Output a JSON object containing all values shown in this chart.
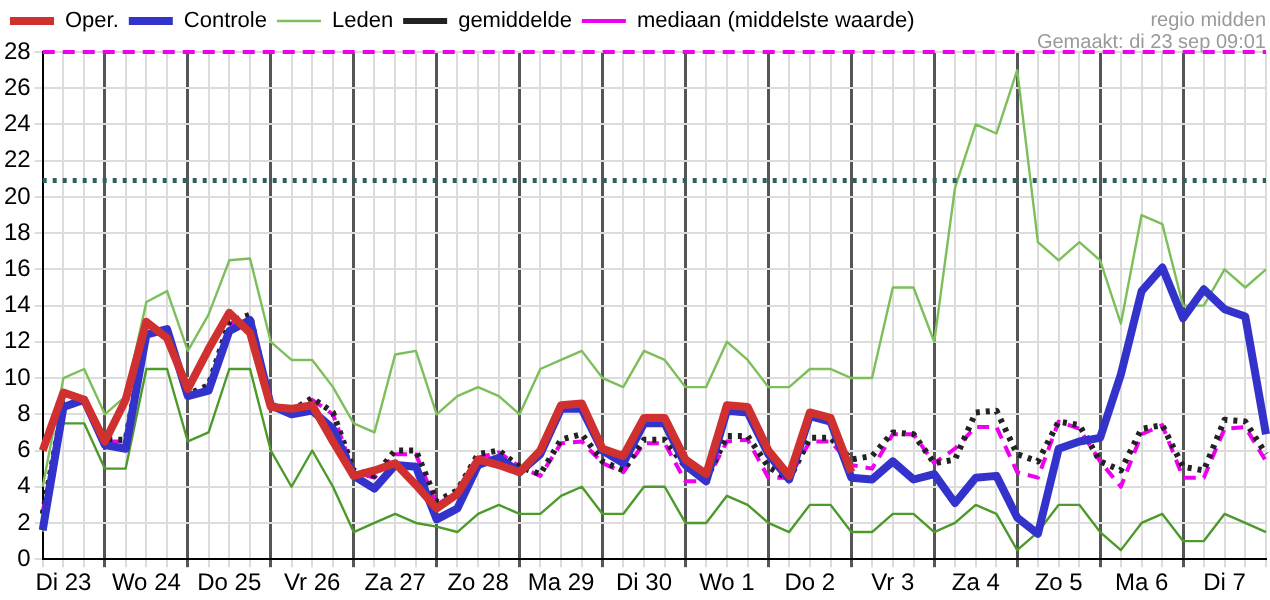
{
  "chart_data": {
    "type": "line",
    "categories": [
      null,
      "Di 23",
      null,
      null,
      null,
      "Wo 24",
      null,
      null,
      null,
      "Do 25",
      null,
      null,
      null,
      "Vr 26",
      null,
      null,
      null,
      "Za 27",
      null,
      null,
      null,
      "Zo 28",
      null,
      null,
      null,
      "Ma 29",
      null,
      null,
      null,
      "Di 30",
      null,
      null,
      null,
      "Wo 1",
      null,
      null,
      null,
      "Do 2",
      null,
      null,
      null,
      "Vr 3",
      null,
      null,
      null,
      "Za 4",
      null,
      null,
      null,
      "Zo 5",
      null,
      null,
      null,
      "Ma 6",
      null,
      null,
      null,
      "Di 7",
      null,
      null
    ],
    "series": [
      {
        "name": "Oper.",
        "color": "#d03030",
        "line_style": "solid",
        "values": [
          6,
          9.2,
          8.8,
          6.5,
          8.8,
          13.1,
          12.2,
          9.4,
          11.6,
          13.6,
          12.5,
          8.4,
          8.3,
          8.5,
          6.5,
          4.6,
          4.9,
          5.3,
          4.1,
          2.8,
          3.6,
          5.5,
          5.2,
          4.8,
          6.0,
          8.5,
          8.6,
          6.1,
          5.7,
          7.8,
          7.8,
          5.5,
          4.7,
          8.5,
          8.4,
          6.0,
          4.6,
          8.1,
          7.8,
          4.8,
          null,
          null,
          null,
          null,
          null,
          null,
          null,
          null,
          null,
          null,
          null,
          null,
          null,
          null,
          null,
          null,
          null,
          null,
          null,
          null
        ]
      },
      {
        "name": "Controle",
        "color": "#3333cc",
        "line_style": "solid",
        "values": [
          1.6,
          8.4,
          8.8,
          6.3,
          6.1,
          12.4,
          12.7,
          9.0,
          9.3,
          12.6,
          13.2,
          8.5,
          8.0,
          8.2,
          7.2,
          4.6,
          3.9,
          5.2,
          5.1,
          2.2,
          2.8,
          5.2,
          5.6,
          4.8,
          5.8,
          8.3,
          8.3,
          6.0,
          5.3,
          7.5,
          7.5,
          5.2,
          4.3,
          8.2,
          8.1,
          5.8,
          4.4,
          7.9,
          7.6,
          4.5,
          4.4,
          5.4,
          4.4,
          4.7,
          3.1,
          4.5,
          4.6,
          2.3,
          1.4,
          6.1,
          6.5,
          6.7,
          10.2,
          14.8,
          16.1,
          13.3,
          14.9,
          13.8,
          13.4,
          6.9
        ]
      },
      {
        "name": "Leden",
        "color": "#7cbf5a",
        "line_style": "solid",
        "values": [
          4,
          10,
          10.5,
          8,
          9,
          14.2,
          14.8,
          11.5,
          13.5,
          16.5,
          16.6,
          12,
          11,
          11,
          9.5,
          7.5,
          7,
          11.3,
          11.5,
          8,
          9,
          9.5,
          9,
          8,
          10.5,
          11,
          11.5,
          10,
          9.5,
          11.5,
          11,
          9.5,
          9.5,
          12,
          11,
          9.5,
          9.5,
          10.5,
          10.5,
          10,
          10,
          15,
          15,
          12,
          20.5,
          24,
          23.5,
          27,
          17.5,
          16.5,
          17.5,
          16.5,
          13,
          19,
          18.5,
          14,
          14,
          16,
          15,
          16
        ]
      },
      {
        "name": "gemiddelde",
        "color": "#222222",
        "line_style": "dotted",
        "values": [
          2.5,
          8.6,
          8.7,
          6.6,
          6.6,
          12.5,
          12.6,
          9.1,
          9.6,
          13.1,
          13.5,
          8.4,
          8.2,
          8.9,
          8.1,
          4.9,
          4.6,
          6.0,
          6.0,
          3.2,
          3.8,
          5.8,
          6.0,
          5.1,
          4.7,
          6.6,
          6.9,
          5.4,
          4.9,
          6.6,
          6.6,
          5.1,
          4.4,
          6.8,
          6.8,
          5.1,
          4.4,
          6.7,
          6.7,
          5.5,
          5.7,
          7.0,
          6.9,
          5.3,
          5.5,
          8.1,
          8.2,
          5.8,
          5.4,
          7.6,
          7.4,
          5.4,
          4.9,
          7.2,
          7.4,
          5.1,
          4.9,
          7.7,
          7.6,
          5.8
        ]
      },
      {
        "name": "mediaan (middelste waarde)",
        "color": "#ee00ee",
        "line_style": "dashed",
        "values": [
          2.6,
          8.5,
          8.7,
          6.5,
          6.5,
          12.4,
          12.6,
          9.1,
          9.4,
          13.0,
          13.3,
          8.4,
          8.1,
          8.8,
          8.0,
          4.8,
          4.5,
          5.8,
          5.8,
          3.0,
          3.7,
          5.6,
          5.9,
          5.1,
          4.6,
          6.4,
          6.5,
          5.3,
          4.8,
          6.4,
          6.4,
          4.3,
          4.3,
          6.5,
          6.6,
          4.5,
          4.5,
          6.5,
          6.5,
          5.2,
          5.0,
          6.9,
          6.9,
          5.3,
          6.1,
          7.3,
          7.3,
          4.8,
          4.5,
          7.6,
          7.2,
          5.4,
          4.0,
          6.9,
          7.4,
          4.5,
          4.5,
          7.2,
          7.3,
          5.4
        ]
      },
      {
        "color": "#4c9a2a",
        "line_style": "solid",
        "values": [
          1.5,
          7.5,
          7.5,
          5,
          5,
          10.5,
          10.5,
          6.5,
          7,
          10.5,
          10.5,
          6,
          4,
          6,
          4,
          1.5,
          2,
          2.5,
          2,
          1.8,
          1.5,
          2.5,
          3,
          2.5,
          2.5,
          3.5,
          4,
          2.5,
          2.5,
          4,
          4,
          2,
          2,
          3.5,
          3,
          2,
          1.5,
          3,
          3,
          1.5,
          1.5,
          2.5,
          2.5,
          1.5,
          2,
          3,
          2.5,
          0.5,
          1.5,
          3,
          3,
          1.5,
          0.5,
          2,
          2.5,
          1,
          1,
          2.5,
          2,
          1.5
        ]
      }
    ],
    "ylim": [
      0,
      28
    ],
    "yticks": [
      0,
      2,
      4,
      6,
      8,
      10,
      12,
      14,
      16,
      18,
      20,
      22,
      24,
      26,
      28
    ],
    "ref_lines": [
      {
        "axis": "y",
        "value": 28,
        "color": "#ee00ee",
        "line_style": "dashed"
      },
      {
        "axis": "y",
        "value": 20.9,
        "color": "#2f5f5f",
        "line_style": "dotted"
      }
    ],
    "annotations": [
      "regio midden",
      "Gemaakt: di 23 sep 09:01"
    ],
    "grid": true,
    "legend": "top"
  }
}
